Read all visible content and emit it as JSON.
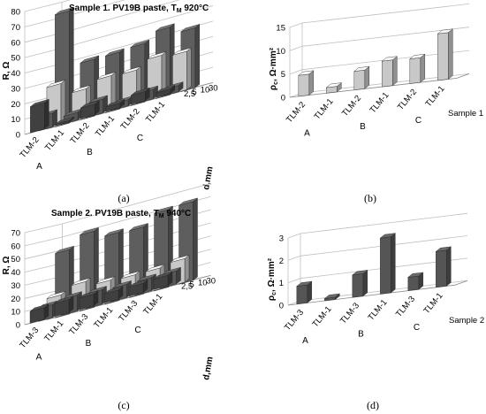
{
  "colors": {
    "d2_5": "#404040",
    "d5": "#565656",
    "d10": "#c8c8c8",
    "d30": "#5e5e5e",
    "rho": "#c8c8c8",
    "rho2": "#555555",
    "grid": "#bfbfbf"
  },
  "chart_data": [
    {
      "id": "a",
      "type": "bar3d",
      "title": "Sample 1. PV19B paste, T",
      "title_sub": "M",
      "title_tail": " 920°C",
      "ylabel": "R, Ω",
      "zlabel": "d,mm",
      "caption": "(a)",
      "ylim": [
        0,
        80
      ],
      "yticks": [
        0,
        10,
        20,
        30,
        40,
        50,
        60,
        70,
        80
      ],
      "categories": [
        "TLM-2",
        "TLM-1",
        "TLM-2",
        "TLM-1",
        "TLM-2",
        "TLM-1"
      ],
      "groups": [
        "A",
        "B",
        "C"
      ],
      "series": [
        {
          "name": "2,5",
          "values": [
            17,
            1,
            7,
            3,
            6,
            3
          ]
        },
        {
          "name": "5",
          "values": [
            9,
            5,
            9,
            4,
            6,
            4
          ]
        },
        {
          "name": "10",
          "values": [
            27,
            19,
            23,
            22,
            27,
            25
          ]
        },
        {
          "name": "30",
          "values": [
            73,
            37,
            37,
            38,
            44,
            39
          ]
        }
      ]
    },
    {
      "id": "b",
      "type": "bar3d",
      "ylabel": "ρ",
      "ylabel_sub": "c",
      "ylabel_tail": ", Ω·mm²",
      "caption": "(b)",
      "ylim": [
        0,
        15
      ],
      "yticks": [
        0,
        5,
        10,
        15
      ],
      "categories": [
        "TLM-2",
        "TLM-1",
        "TLM-2",
        "TLM-1",
        "TLM-2",
        "TLM-1"
      ],
      "groups": [
        "A",
        "B",
        "C"
      ],
      "series": [
        {
          "name": "Sample 1",
          "values": [
            4.5,
            1.2,
            4,
            5.5,
            5.3,
            10
          ]
        }
      ]
    },
    {
      "id": "c",
      "type": "bar3d",
      "title": "Sample 2. PV19B paste,  T",
      "title_sub": "M",
      "title_tail": " 940°C",
      "ylabel": "R, Ω",
      "zlabel": "d,mm",
      "caption": "(c)",
      "ylim": [
        0,
        70
      ],
      "yticks": [
        0,
        10,
        20,
        30,
        40,
        50,
        60,
        70
      ],
      "categories": [
        "TLM-3",
        "TLM-1",
        "TLM-3",
        "TLM-1",
        "TLM-3",
        "TLM-1"
      ],
      "groups": [
        "A",
        "B",
        "C"
      ],
      "series": [
        {
          "name": "2,5",
          "values": [
            9,
            10,
            9,
            7,
            7,
            8
          ]
        },
        {
          "name": "5",
          "values": [
            10,
            12,
            11,
            10,
            10,
            10
          ]
        },
        {
          "name": "10",
          "values": [
            16,
            21,
            17,
            16,
            16,
            18
          ]
        },
        {
          "name": "30",
          "values": [
            49,
            58,
            52,
            51,
            59,
            60
          ]
        }
      ]
    },
    {
      "id": "d",
      "type": "bar3d",
      "ylabel": "ρ",
      "ylabel_sub": "c",
      "ylabel_tail": ", Ω·mm²",
      "caption": "(d)",
      "ylim": [
        0,
        3
      ],
      "yticks": [
        0,
        1,
        2,
        3
      ],
      "categories": [
        "TLM-3",
        "TLM-1",
        "TLM-3",
        "TLM-1",
        "TLM-3",
        "TLM-1"
      ],
      "groups": [
        "A",
        "B",
        "C"
      ],
      "series": [
        {
          "name": "Sample 2",
          "values": [
            0.8,
            0.1,
            1.0,
            2.5,
            0.6,
            1.6
          ]
        }
      ]
    }
  ]
}
